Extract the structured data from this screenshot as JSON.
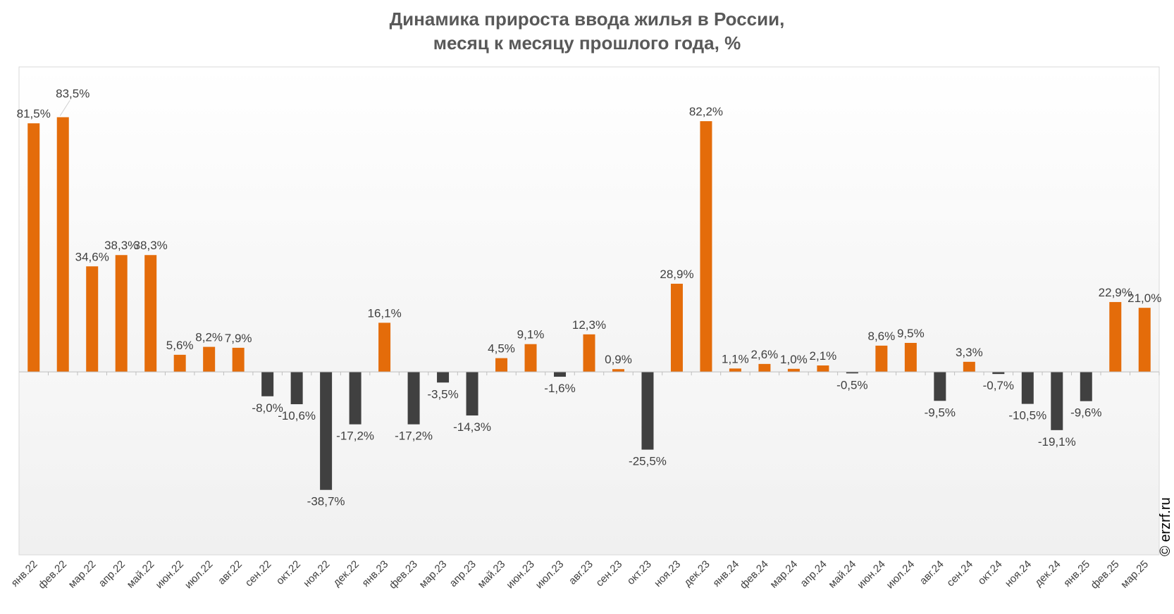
{
  "chart_data": {
    "type": "bar",
    "title_lines": [
      "Динамика прироста ввода жилья в России,",
      "месяц к месяцу прошлого года, %"
    ],
    "categories": [
      "янв.22",
      "фев.22",
      "мар.22",
      "апр.22",
      "май.22",
      "июн.22",
      "июл.22",
      "авг.22",
      "сен.22",
      "окт.22",
      "ноя.22",
      "дек.22",
      "янв.23",
      "фев.23",
      "мар.23",
      "апр.23",
      "май.23",
      "июн.23",
      "июл.23",
      "авг.23",
      "сен.23",
      "окт.23",
      "ноя.23",
      "дек.23",
      "янв.24",
      "фев.24",
      "мар.24",
      "апр.24",
      "май.24",
      "июн.24",
      "июл.24",
      "авг.24",
      "сен.24",
      "окт.24",
      "ноя.24",
      "дек.24",
      "янв.25",
      "фев.25",
      "мар.25"
    ],
    "values": [
      81.5,
      83.5,
      34.6,
      38.3,
      38.3,
      5.6,
      8.2,
      7.9,
      -8.0,
      -10.6,
      -38.7,
      -17.2,
      16.1,
      -17.2,
      -3.5,
      -14.3,
      4.5,
      9.1,
      -1.6,
      12.3,
      0.9,
      -25.5,
      28.9,
      82.2,
      1.1,
      2.6,
      1.0,
      2.1,
      -0.5,
      8.6,
      9.5,
      -9.5,
      3.3,
      -0.7,
      -10.5,
      -19.1,
      -9.6,
      22.9,
      21.0
    ],
    "labels": [
      "81,5%",
      "83,5%",
      "34,6%",
      "38,3%",
      "38,3%",
      "5,6%",
      "8,2%",
      "7,9%",
      "-8,0%",
      "-10,6%",
      "-38,7%",
      "-17,2%",
      "16,1%",
      "-17,2%",
      "-3,5%",
      "-14,3%",
      "4,5%",
      "9,1%",
      "-1,6%",
      "12,3%",
      "0,9%",
      "-25,5%",
      "28,9%",
      "82,2%",
      "1,1%",
      "2,6%",
      "1,0%",
      "2,1%",
      "-0,5%",
      "8,6%",
      "9,5%",
      "-9,5%",
      "3,3%",
      "-0,7%",
      "-10,5%",
      "-19,1%",
      "-9,6%",
      "22,9%",
      "21,0%"
    ],
    "xlabel": "",
    "ylabel": "",
    "ylim": [
      -60,
      100
    ],
    "grid": false,
    "legend": "none",
    "colors": {
      "positive": "#E46C0A",
      "negative": "#404040"
    },
    "copyright": "© erzrf.ru"
  }
}
